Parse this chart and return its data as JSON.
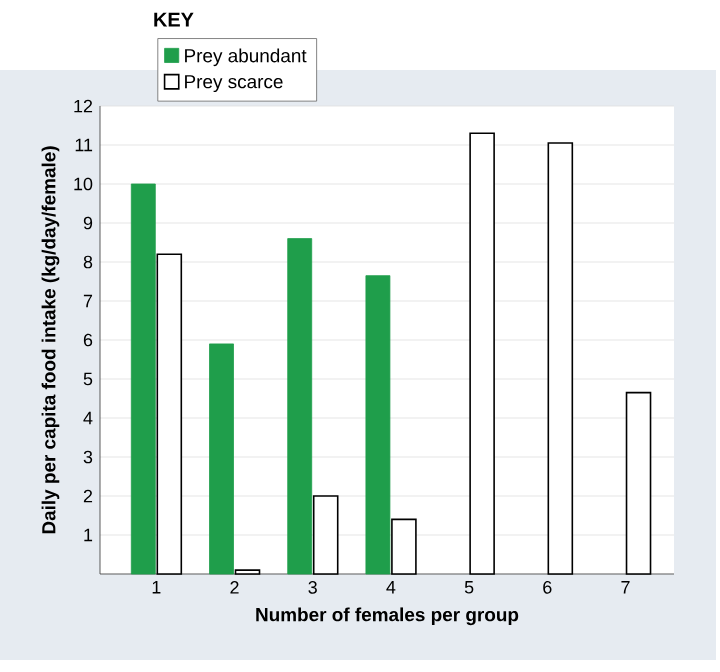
{
  "chart_data": {
    "type": "bar",
    "xlabel": "Number of females per group",
    "ylabel": "Daily per capita food intake (kg/day/female)",
    "legend_title": "KEY",
    "categories": [
      "1",
      "2",
      "3",
      "4",
      "5",
      "6",
      "7"
    ],
    "series": [
      {
        "name": "Prey abundant",
        "color": "#1f9e4b",
        "values": [
          10,
          5.9,
          8.6,
          7.65,
          null,
          null,
          null
        ]
      },
      {
        "name": "Prey scarce",
        "color": "#000000",
        "values": [
          8.2,
          0.1,
          2.0,
          1.4,
          11.3,
          11.05,
          4.65
        ]
      }
    ],
    "ylim": [
      0,
      12
    ],
    "yticks": [
      1,
      2,
      3,
      4,
      5,
      6,
      7,
      8,
      9,
      10,
      11,
      12
    ],
    "grid": "y",
    "legend": "top left"
  }
}
